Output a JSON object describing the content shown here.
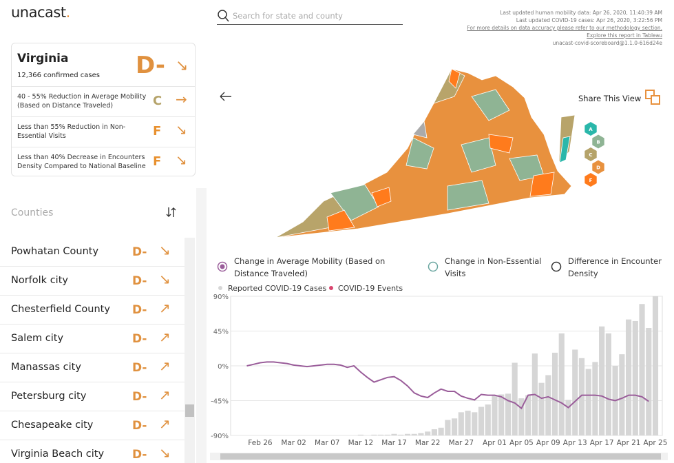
{
  "logo": {
    "name": "unacast",
    "dot": "."
  },
  "search": {
    "placeholder": "Search for state and county"
  },
  "updates": [
    "Last updated human mobility data: Apr 26, 2020, 11:40:39 AM",
    "Last updated COVID-19 cases: Apr 26, 2020, 3:22:56 PM",
    "For more details on data accuracy please refer to our methodology section.",
    "Explore this report in Tableau",
    "unacast-covid-scoreboard@1.1.0-616d24e"
  ],
  "state": {
    "name": "Virginia",
    "cases": "12,366 confirmed cases",
    "grade": "D-",
    "trend": "↘",
    "metrics": [
      {
        "text": "40 - 55% Reduction in Average Mobility (Based on Distance Traveled)",
        "grade": "C",
        "trend": "→",
        "color": "#b5a36a"
      },
      {
        "text": "Less than 55% Reduction in Non-Essential Visits",
        "grade": "F",
        "trend": "↘",
        "color": "#e8902e"
      },
      {
        "text": "Less than 40% Decrease in Encounters Density Compared to National Baseline",
        "grade": "F",
        "trend": "↘",
        "color": "#e8902e"
      }
    ]
  },
  "counties": {
    "title": "Counties",
    "rows": [
      {
        "name": "Powhatan County",
        "grade": "D-",
        "trend": "↘"
      },
      {
        "name": "Norfolk city",
        "grade": "D-",
        "trend": "↘"
      },
      {
        "name": "Chesterfield County",
        "grade": "D-",
        "trend": "↗"
      },
      {
        "name": "Salem city",
        "grade": "D-",
        "trend": "↗"
      },
      {
        "name": "Manassas city",
        "grade": "D-",
        "trend": "↗"
      },
      {
        "name": "Petersburg city",
        "grade": "D-",
        "trend": "↗"
      },
      {
        "name": "Chesapeake city",
        "grade": "D-",
        "trend": "↗"
      },
      {
        "name": "Virginia Beach city",
        "grade": "D-",
        "trend": "↘"
      }
    ]
  },
  "share": "Share This View",
  "grade_legend": [
    {
      "grade": "A",
      "color": "#2ab7aa"
    },
    {
      "grade": "B",
      "color": "#8fb494"
    },
    {
      "grade": "C",
      "color": "#b5a36a"
    },
    {
      "grade": "D",
      "color": "#e8913e"
    },
    {
      "grade": "F",
      "color": "#ff7b1c"
    }
  ],
  "metric_options": [
    {
      "label": "Change in Average Mobility (Based on Distance Traveled)",
      "selected": true
    },
    {
      "label": "Change in Non-Essential Visits",
      "selected": false
    },
    {
      "label": "Difference in Encounter Density",
      "selected": false
    }
  ],
  "chart_data": {
    "type": "combo",
    "categories": [
      null,
      null,
      "Feb 26",
      null,
      null,
      null,
      null,
      "Mar 02",
      null,
      null,
      null,
      null,
      "Mar 07",
      null,
      null,
      null,
      null,
      "Mar 12",
      null,
      null,
      null,
      null,
      "Mar 17",
      null,
      null,
      null,
      null,
      "Mar 22",
      null,
      null,
      null,
      null,
      "Mar 27",
      null,
      null,
      null,
      null,
      "Apr 01",
      null,
      null,
      null,
      "Apr 05",
      null,
      null,
      null,
      "Apr 09",
      null,
      null,
      null,
      "Apr 13",
      null,
      null,
      null,
      "Apr 17",
      null,
      null,
      null,
      "Apr 21",
      null,
      null,
      null,
      "Apr 25"
    ],
    "series": [
      {
        "name": "Reported COVID-19 Cases",
        "type": "bar",
        "color": "#d6d6d6",
        "values": [
          -90,
          -90,
          -90,
          -90,
          -90,
          -90,
          -90,
          -90,
          -90,
          -90,
          -90,
          -90,
          -90,
          -90,
          -90,
          -90,
          -90,
          -89,
          -90,
          -89,
          -89,
          -89,
          -88,
          -89,
          -88,
          -88,
          -87,
          -85,
          -82,
          -80,
          -70,
          -68,
          -60,
          -58,
          -60,
          -53,
          -50,
          -38,
          -37,
          -36,
          4,
          -42,
          -38,
          16,
          -22,
          -12,
          17,
          42,
          -44,
          21,
          10,
          -4,
          5,
          51,
          42,
          0,
          15,
          60,
          58,
          80,
          49,
          90
        ]
      },
      {
        "type": "line",
        "color": "#9a5d9a",
        "values": [
          0,
          2,
          4,
          5,
          5,
          4,
          3,
          1,
          0,
          -1,
          0,
          1,
          2,
          2,
          1,
          -2,
          0,
          -8,
          -15,
          -21,
          -18,
          -15,
          -14,
          -19,
          -26,
          -35,
          -39,
          -41,
          -35,
          -30,
          -33,
          -33,
          -39,
          -42,
          -44,
          -37,
          -38,
          -38,
          -40,
          -45,
          -48,
          -55,
          -38,
          -37,
          -42,
          -40,
          -44,
          -48,
          -54,
          -46,
          -38,
          -38,
          -38,
          -39,
          -43,
          -45,
          -42,
          -38,
          -38,
          -40,
          -46,
          null
        ]
      }
    ],
    "events_legend": {
      "name": "COVID-19 Events",
      "color": "#d9466f"
    },
    "ylim": [
      -90,
      90
    ],
    "yticks": [
      {
        "value": -90,
        "label": "-90%"
      },
      {
        "value": -45,
        "label": "-45%"
      },
      {
        "value": 0,
        "label": "0%"
      },
      {
        "value": 45,
        "label": "45%"
      },
      {
        "value": 90,
        "label": "90%"
      }
    ],
    "grid": true
  }
}
